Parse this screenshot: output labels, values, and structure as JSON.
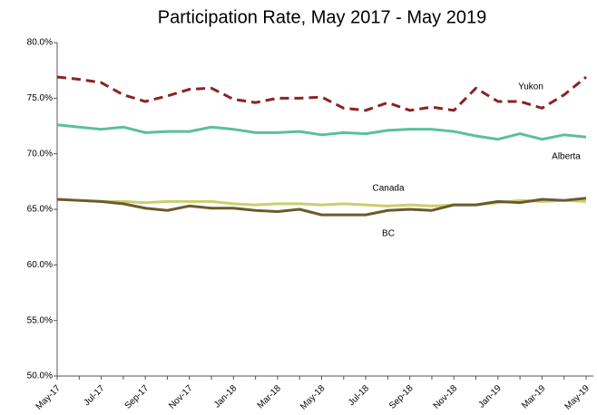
{
  "chart_data": {
    "type": "line",
    "title": "Participation Rate, May 2017 - May 2019",
    "categories": [
      "May-17",
      null,
      "Jul-17",
      null,
      "Sep-17",
      null,
      "Nov-17",
      null,
      "Jan-18",
      null,
      "Mar-18",
      null,
      "May-18",
      null,
      "Jul-18",
      null,
      "Sep-18",
      null,
      "Nov-18",
      null,
      "Jan-19",
      null,
      "Mar-19",
      null,
      "May-19"
    ],
    "ylim": [
      50,
      80
    ],
    "yticks": [
      {
        "value": 50,
        "label": "50.0%"
      },
      {
        "value": 55,
        "label": "55.0%"
      },
      {
        "value": 60,
        "label": "60.0%"
      },
      {
        "value": 65,
        "label": "65.0%"
      },
      {
        "value": 70,
        "label": "70.0%"
      },
      {
        "value": 75,
        "label": "75.0%"
      },
      {
        "value": 80,
        "label": "80.0%"
      }
    ],
    "grid": false,
    "series": [
      {
        "name": "Yukon",
        "color": "#8b2323",
        "style": "dashed",
        "values": [
          76.9,
          76.7,
          76.4,
          75.3,
          74.7,
          75.2,
          75.8,
          75.9,
          74.9,
          74.6,
          75.0,
          75.0,
          75.1,
          74.1,
          73.9,
          74.6,
          73.9,
          74.2,
          73.9,
          75.9,
          74.7,
          74.7,
          74.1,
          75.3,
          76.9
        ]
      },
      {
        "name": "Alberta",
        "color": "#5bbf9f",
        "style": "solid",
        "values": [
          72.6,
          72.4,
          72.2,
          72.4,
          71.9,
          72.0,
          72.0,
          72.4,
          72.2,
          71.9,
          71.9,
          72.0,
          71.7,
          71.9,
          71.8,
          72.1,
          72.2,
          72.2,
          72.0,
          71.6,
          71.3,
          71.8,
          71.3,
          71.7,
          71.5
        ]
      },
      {
        "name": "Canada",
        "color": "#c9cf6b",
        "style": "solid",
        "values": [
          65.9,
          65.8,
          65.7,
          65.7,
          65.6,
          65.7,
          65.7,
          65.7,
          65.5,
          65.4,
          65.5,
          65.5,
          65.4,
          65.5,
          65.4,
          65.3,
          65.4,
          65.3,
          65.4,
          65.4,
          65.6,
          65.8,
          65.7,
          65.8,
          65.7
        ]
      },
      {
        "name": "BC",
        "color": "#6b5a2e",
        "style": "solid",
        "values": [
          65.9,
          65.8,
          65.7,
          65.5,
          65.1,
          64.9,
          65.3,
          65.1,
          65.1,
          64.9,
          64.8,
          65.0,
          64.5,
          64.5,
          64.5,
          64.9,
          65.0,
          64.9,
          65.4,
          65.4,
          65.7,
          65.6,
          65.9,
          65.8,
          66.0
        ]
      }
    ]
  }
}
